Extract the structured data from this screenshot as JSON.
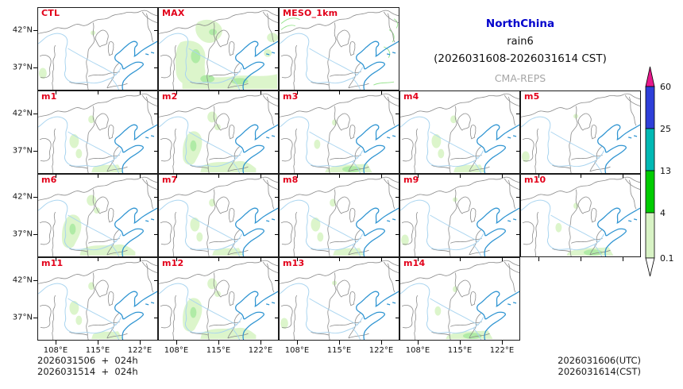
{
  "title": {
    "region": "NorthChina",
    "variable": "rain6",
    "period": "(2026031608-2026031614 CST)",
    "system": "CMA-REPS"
  },
  "panels": [
    {
      "label": "CTL",
      "precip": "trace"
    },
    {
      "label": "MAX",
      "precip": "heavy"
    },
    {
      "label": "MESO_1km",
      "precip": "outline"
    },
    {
      "label": "m1",
      "precip": "light"
    },
    {
      "label": "m2",
      "precip": "moderate"
    },
    {
      "label": "m3",
      "precip": "light-bottom"
    },
    {
      "label": "m4",
      "precip": "light"
    },
    {
      "label": "m5",
      "precip": "trace"
    },
    {
      "label": "m6",
      "precip": "moderate"
    },
    {
      "label": "m7",
      "precip": "light"
    },
    {
      "label": "m8",
      "precip": "light"
    },
    {
      "label": "m9",
      "precip": "trace"
    },
    {
      "label": "m10",
      "precip": "light-bottom"
    },
    {
      "label": "m11",
      "precip": "light"
    },
    {
      "label": "m12",
      "precip": "moderate"
    },
    {
      "label": "m13",
      "precip": "trace"
    },
    {
      "label": "m14",
      "precip": "light-bottom"
    }
  ],
  "axes": {
    "lat_ticks": [
      "42°N",
      "37°N"
    ],
    "lon_ticks": [
      "108°E",
      "115°E",
      "122°E"
    ]
  },
  "colorbar": {
    "labels": [
      "60",
      "25",
      "13",
      "4",
      "0.1"
    ],
    "segment_colors": [
      "#2e3fd9",
      "#00b9b4",
      "#00cc00",
      "#d8f3c5"
    ],
    "over_color": "#e6198c",
    "under_color": "#ffffff"
  },
  "footer": {
    "init_utc": "2026031506  +  024h",
    "init_cst": "2026031514  +  024h",
    "valid_utc": "2026031606(UTC)",
    "valid_cst": "2026031614(CST)"
  },
  "colors": {
    "panel_label": "#e2001a",
    "title_blue": "#0000cc",
    "system_gray": "#a6a6a6",
    "border_gray": "#8a8a8a",
    "coast_blue": "#3095d2",
    "river_blue": "#aad5f0",
    "precip_light_green": "#dcf5cb",
    "precip_green": "#b0eba6"
  }
}
